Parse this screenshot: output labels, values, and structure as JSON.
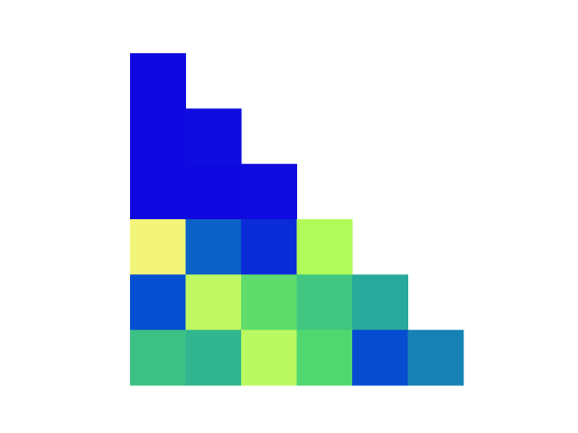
{
  "chart_data": {
    "type": "heatmap",
    "colormap": [
      "#1008e0",
      "#0450d0",
      "#22a4a0",
      "#50d870",
      "#b0fa5a",
      "#f2f57a"
    ],
    "vlim": [
      0,
      1
    ],
    "values": [
      [
        0.0,
        null,
        null,
        null,
        null,
        null
      ],
      [
        0.0,
        0.01,
        null,
        null,
        null,
        null
      ],
      [
        0.0,
        0.0,
        0.01,
        null,
        null,
        null
      ],
      [
        1.0,
        0.24,
        0.1,
        0.8,
        null,
        null
      ],
      [
        0.2,
        0.85,
        0.63,
        0.53,
        0.42,
        null
      ],
      [
        0.51,
        0.47,
        0.83,
        0.6,
        0.19,
        0.32
      ]
    ]
  }
}
